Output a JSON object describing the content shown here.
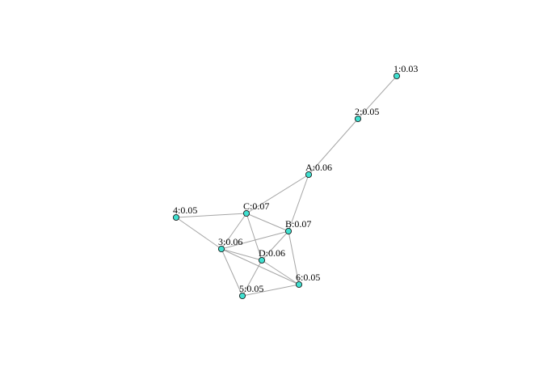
{
  "graph": {
    "node_color": "#40e0d0",
    "edge_color": "#a6a6a6",
    "nodes": [
      {
        "id": "1",
        "label": "1:0.03"
      },
      {
        "id": "2",
        "label": "2:0.05"
      },
      {
        "id": "A",
        "label": "A:0.06"
      },
      {
        "id": "C",
        "label": "C:0.07"
      },
      {
        "id": "4",
        "label": "4:0.05"
      },
      {
        "id": "B",
        "label": "B:0.07"
      },
      {
        "id": "3",
        "label": "3:0.06"
      },
      {
        "id": "D",
        "label": "D:0.06"
      },
      {
        "id": "6",
        "label": "6:0.05"
      },
      {
        "id": "5",
        "label": "5:0.05"
      }
    ],
    "edges": [
      [
        "1",
        "2"
      ],
      [
        "2",
        "A"
      ],
      [
        "A",
        "C"
      ],
      [
        "A",
        "B"
      ],
      [
        "C",
        "4"
      ],
      [
        "C",
        "3"
      ],
      [
        "C",
        "D"
      ],
      [
        "C",
        "B"
      ],
      [
        "4",
        "3"
      ],
      [
        "3",
        "B"
      ],
      [
        "3",
        "D"
      ],
      [
        "3",
        "5"
      ],
      [
        "3",
        "6"
      ],
      [
        "B",
        "D"
      ],
      [
        "B",
        "6"
      ],
      [
        "D",
        "5"
      ],
      [
        "D",
        "6"
      ],
      [
        "5",
        "6"
      ]
    ]
  }
}
